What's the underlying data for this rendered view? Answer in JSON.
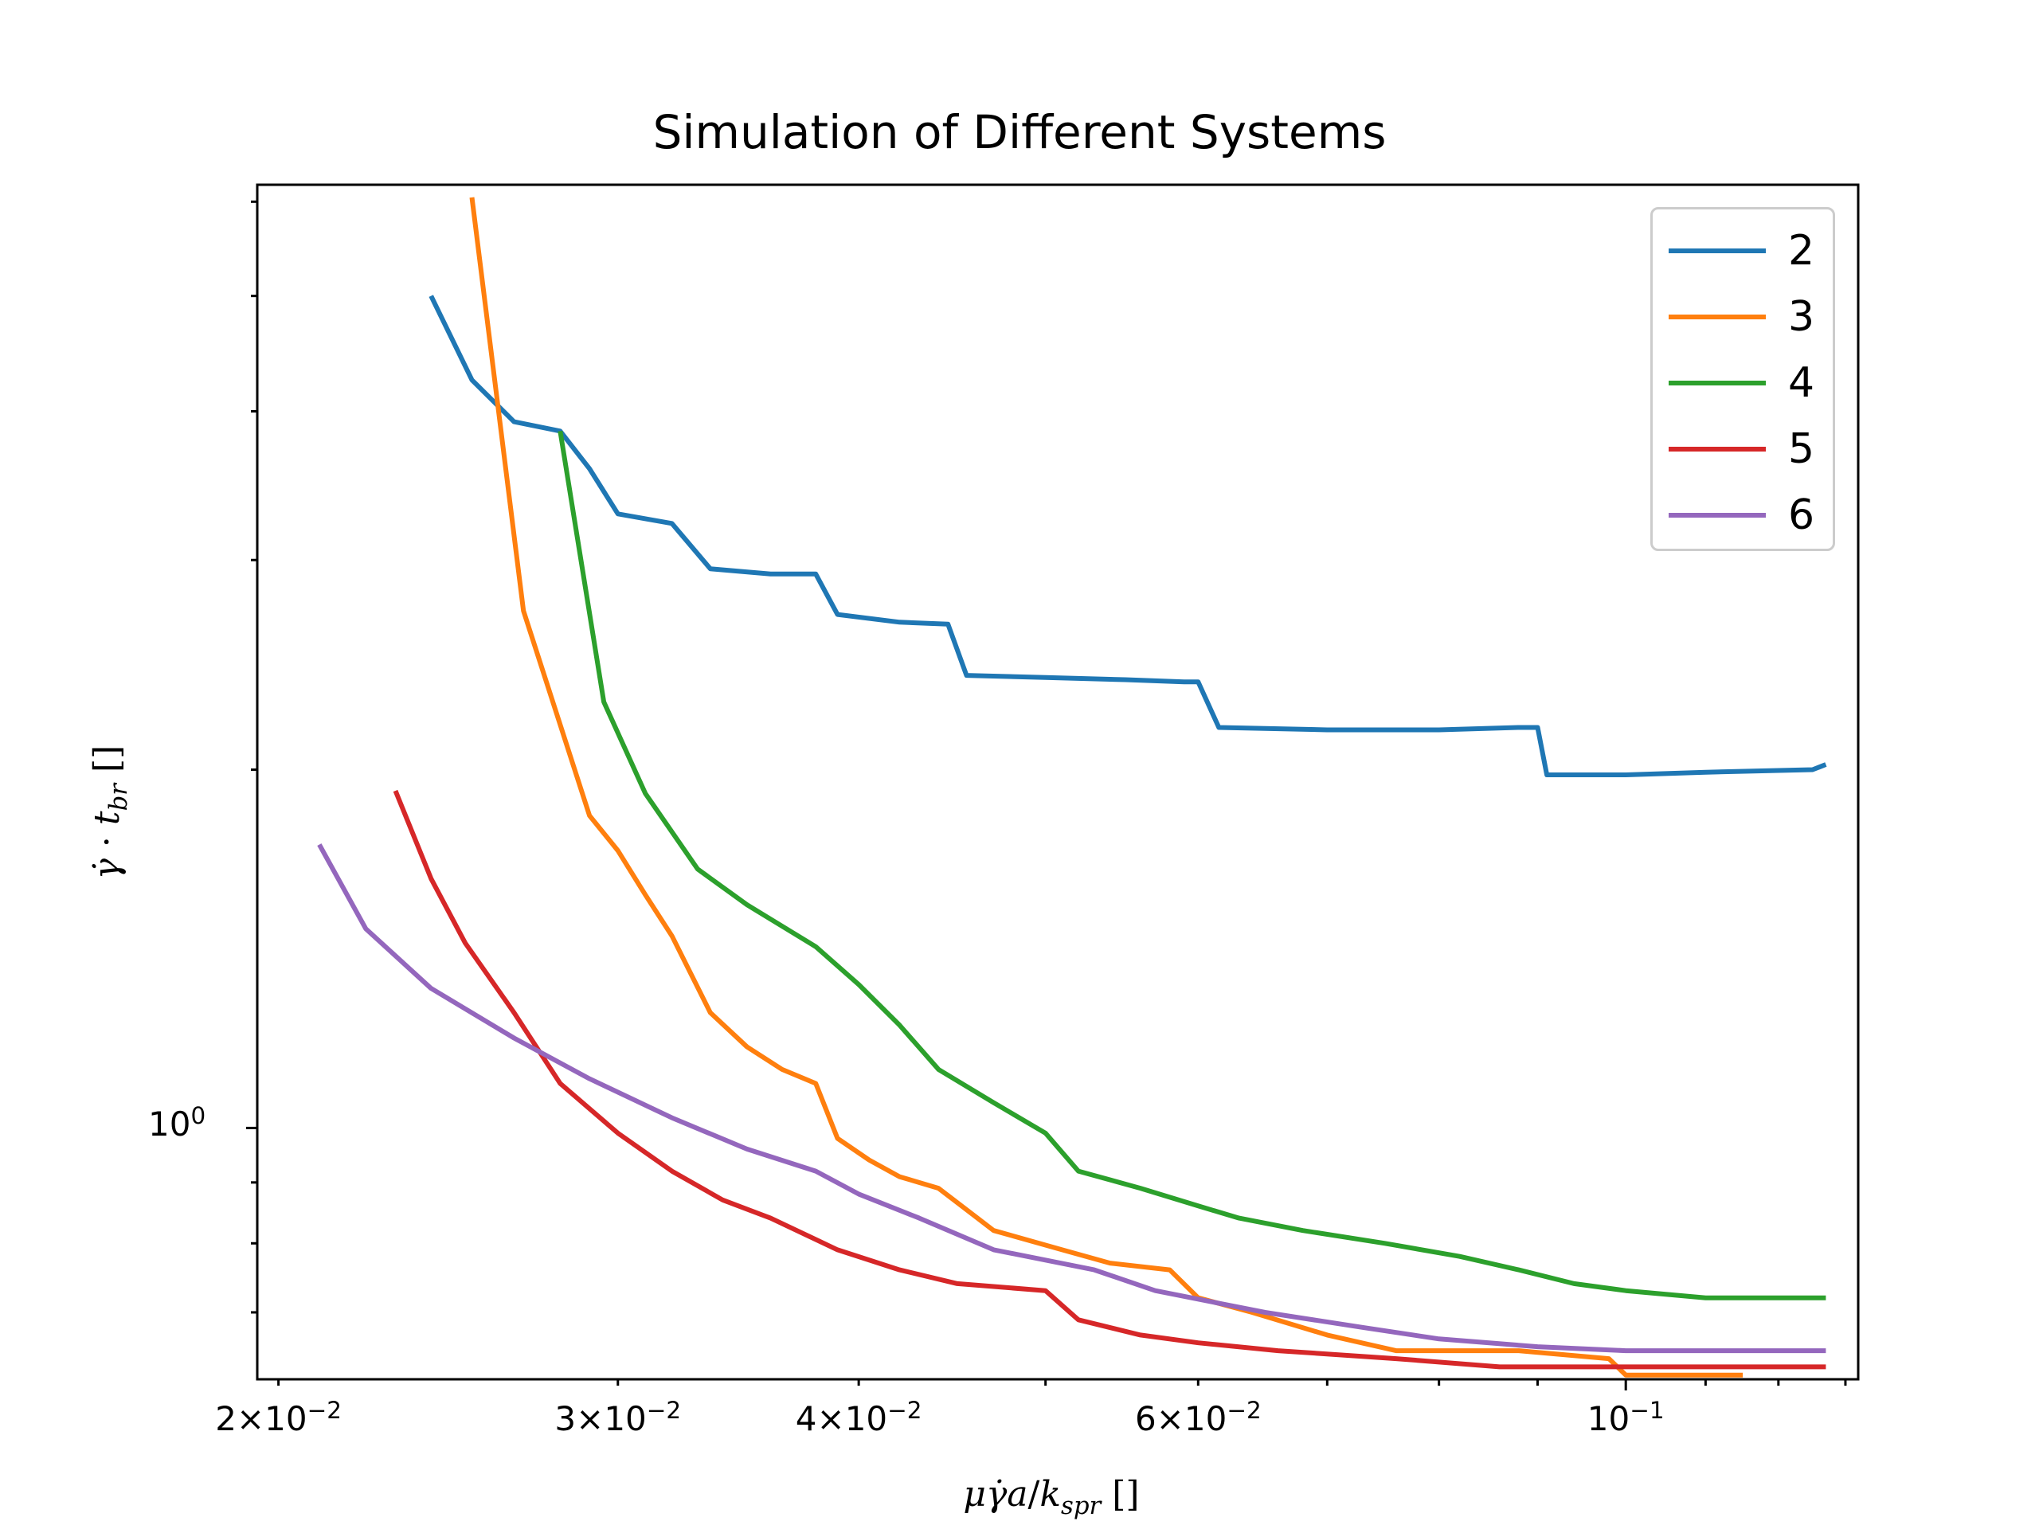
{
  "chart_data": {
    "type": "line",
    "title": "Simulation of Different Systems",
    "xlabel": "μγ̇a/k_spr []",
    "ylabel": "γ̇·t_br []",
    "xscale": "log",
    "yscale": "log",
    "xlim": [
      0.0195,
      0.132
    ],
    "ylim": [
      0.615,
      6.2
    ],
    "x_ticks": [
      {
        "value": 0.02,
        "label": "2×10",
        "exp": "−2"
      },
      {
        "value": 0.03,
        "label": "3×10",
        "exp": "−2"
      },
      {
        "value": 0.04,
        "label": "4×10",
        "exp": "−2"
      },
      {
        "value": 0.06,
        "label": "6×10",
        "exp": "−2"
      },
      {
        "value": 0.1,
        "label": "10",
        "exp": "−1"
      }
    ],
    "y_major_label": {
      "value": 1.0,
      "label": "10",
      "exp": "0"
    },
    "legend_position": "top-right",
    "grid": false,
    "series": [
      {
        "name": "2",
        "color": "#1f77b4",
        "points": [
          [
            0.024,
            5.0
          ],
          [
            0.0252,
            4.25
          ],
          [
            0.0265,
            3.92
          ],
          [
            0.028,
            3.85
          ],
          [
            0.029,
            3.58
          ],
          [
            0.03,
            3.28
          ],
          [
            0.032,
            3.22
          ],
          [
            0.0335,
            2.95
          ],
          [
            0.036,
            2.92
          ],
          [
            0.038,
            2.92
          ],
          [
            0.039,
            2.7
          ],
          [
            0.042,
            2.66
          ],
          [
            0.0445,
            2.65
          ],
          [
            0.0455,
            2.4
          ],
          [
            0.05,
            2.39
          ],
          [
            0.055,
            2.38
          ],
          [
            0.059,
            2.37
          ],
          [
            0.06,
            2.37
          ],
          [
            0.0615,
            2.17
          ],
          [
            0.07,
            2.16
          ],
          [
            0.08,
            2.16
          ],
          [
            0.088,
            2.17
          ],
          [
            0.09,
            2.17
          ],
          [
            0.091,
            1.98
          ],
          [
            0.1,
            1.98
          ],
          [
            0.11,
            1.99
          ],
          [
            0.125,
            2.0
          ],
          [
            0.127,
            2.02
          ]
        ]
      },
      {
        "name": "3",
        "color": "#ff7f0e",
        "points": [
          [
            0.0252,
            6.05
          ],
          [
            0.0268,
            2.72
          ],
          [
            0.029,
            1.83
          ],
          [
            0.03,
            1.71
          ],
          [
            0.031,
            1.57
          ],
          [
            0.032,
            1.45
          ],
          [
            0.0335,
            1.25
          ],
          [
            0.035,
            1.17
          ],
          [
            0.0365,
            1.12
          ],
          [
            0.038,
            1.09
          ],
          [
            0.039,
            0.98
          ],
          [
            0.0405,
            0.94
          ],
          [
            0.042,
            0.91
          ],
          [
            0.044,
            0.89
          ],
          [
            0.047,
            0.82
          ],
          [
            0.051,
            0.79
          ],
          [
            0.054,
            0.77
          ],
          [
            0.058,
            0.76
          ],
          [
            0.06,
            0.72
          ],
          [
            0.064,
            0.7
          ],
          [
            0.07,
            0.67
          ],
          [
            0.076,
            0.65
          ],
          [
            0.088,
            0.65
          ],
          [
            0.098,
            0.64
          ],
          [
            0.1,
            0.62
          ],
          [
            0.115,
            0.62
          ]
        ]
      },
      {
        "name": "4",
        "color": "#2ca02c",
        "points": [
          [
            0.028,
            3.85
          ],
          [
            0.0295,
            2.28
          ],
          [
            0.031,
            1.91
          ],
          [
            0.033,
            1.65
          ],
          [
            0.035,
            1.54
          ],
          [
            0.038,
            1.42
          ],
          [
            0.04,
            1.32
          ],
          [
            0.042,
            1.22
          ],
          [
            0.044,
            1.12
          ],
          [
            0.047,
            1.05
          ],
          [
            0.05,
            0.99
          ],
          [
            0.052,
            0.92
          ],
          [
            0.056,
            0.89
          ],
          [
            0.06,
            0.86
          ],
          [
            0.063,
            0.84
          ],
          [
            0.068,
            0.82
          ],
          [
            0.075,
            0.8
          ],
          [
            0.082,
            0.78
          ],
          [
            0.088,
            0.76
          ],
          [
            0.094,
            0.74
          ],
          [
            0.1,
            0.73
          ],
          [
            0.11,
            0.72
          ],
          [
            0.127,
            0.72
          ]
        ]
      },
      {
        "name": "5",
        "color": "#d62728",
        "points": [
          [
            0.023,
            1.92
          ],
          [
            0.024,
            1.62
          ],
          [
            0.025,
            1.43
          ],
          [
            0.0265,
            1.25
          ],
          [
            0.028,
            1.09
          ],
          [
            0.03,
            0.99
          ],
          [
            0.032,
            0.92
          ],
          [
            0.034,
            0.87
          ],
          [
            0.036,
            0.84
          ],
          [
            0.039,
            0.79
          ],
          [
            0.042,
            0.76
          ],
          [
            0.045,
            0.74
          ],
          [
            0.05,
            0.73
          ],
          [
            0.052,
            0.69
          ],
          [
            0.056,
            0.67
          ],
          [
            0.06,
            0.66
          ],
          [
            0.066,
            0.65
          ],
          [
            0.076,
            0.64
          ],
          [
            0.086,
            0.63
          ],
          [
            0.1,
            0.63
          ],
          [
            0.127,
            0.63
          ]
        ]
      },
      {
        "name": "6",
        "color": "#9467bd",
        "points": [
          [
            0.021,
            1.73
          ],
          [
            0.0222,
            1.47
          ],
          [
            0.024,
            1.31
          ],
          [
            0.0265,
            1.19
          ],
          [
            0.029,
            1.1
          ],
          [
            0.032,
            1.02
          ],
          [
            0.035,
            0.96
          ],
          [
            0.038,
            0.92
          ],
          [
            0.04,
            0.88
          ],
          [
            0.043,
            0.84
          ],
          [
            0.047,
            0.79
          ],
          [
            0.053,
            0.76
          ],
          [
            0.057,
            0.73
          ],
          [
            0.065,
            0.7
          ],
          [
            0.073,
            0.68
          ],
          [
            0.08,
            0.665
          ],
          [
            0.09,
            0.655
          ],
          [
            0.1,
            0.65
          ],
          [
            0.127,
            0.65
          ]
        ]
      }
    ]
  }
}
